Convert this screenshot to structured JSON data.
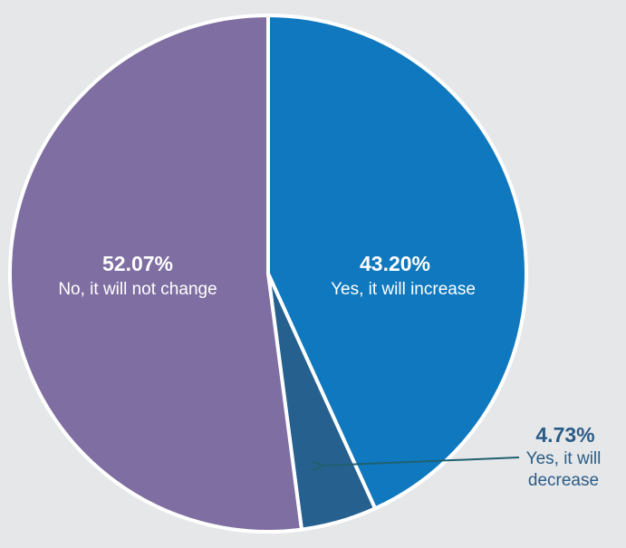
{
  "chart_data": {
    "type": "pie",
    "title": "",
    "slices": [
      {
        "name": "Yes, it will increase",
        "value": 43.2,
        "label": "43.20%",
        "color": "#0f78be",
        "label_color": "#ffffff"
      },
      {
        "name": "Yes, it will decrease",
        "value": 4.73,
        "label": "4.73%",
        "color": "#25608f",
        "label_color": "#2b5c87"
      },
      {
        "name": "No, it will not change",
        "value": 52.07,
        "label": "52.07%",
        "color": "#7f6ea2",
        "label_color": "#ffffff"
      }
    ],
    "start_angle": "12 o'clock",
    "direction": "clockwise",
    "separator_color": "#ffffff",
    "annotation_arrow_color": "#1f6070"
  }
}
